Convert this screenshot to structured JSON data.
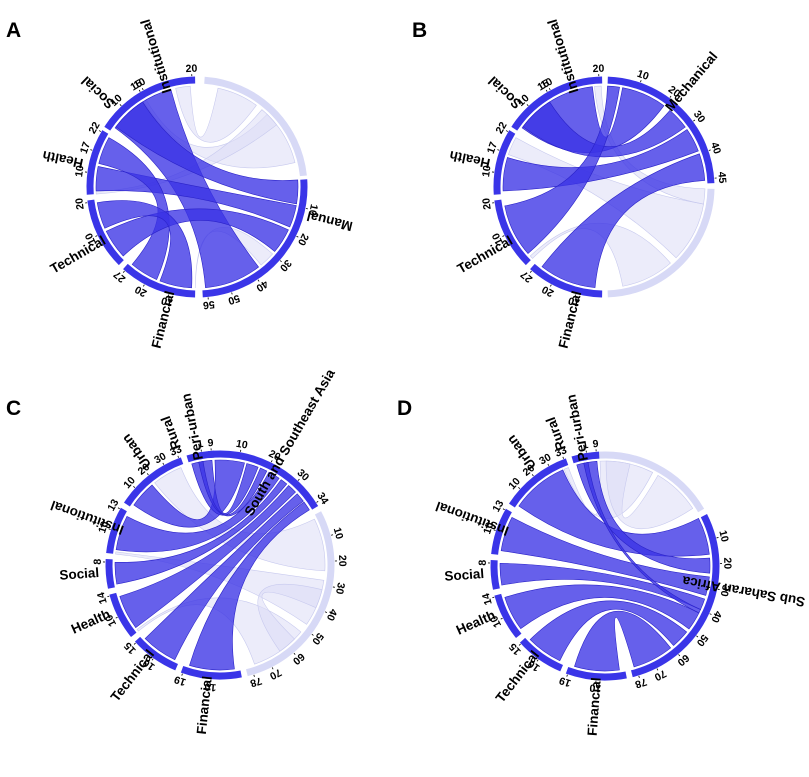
{
  "colors": {
    "highlight_arc": "#3a35e8",
    "highlight_ribbon": "#3b33e6",
    "faded_arc": "#d7d9f6",
    "faded_ribbon": "#dcdcf5",
    "text": "#000000"
  },
  "panels": [
    {
      "id": "A",
      "letter": "A",
      "segments": [
        {
          "name": "Institutional",
          "highlighted": true,
          "tick_labels": [
            "10",
            "20"
          ]
        },
        {
          "name": "",
          "highlighted": false,
          "tick_labels": []
        },
        {
          "name": "Manual",
          "highlighted": true,
          "tick_labels": [
            "10",
            "20",
            "30",
            "40",
            "50",
            "56"
          ]
        },
        {
          "name": "Financial",
          "highlighted": true,
          "tick_labels": [
            "10",
            "20",
            "27"
          ]
        },
        {
          "name": "Technical",
          "highlighted": true,
          "tick_labels": [
            "10",
            "20"
          ]
        },
        {
          "name": "Health",
          "highlighted": true,
          "tick_labels": [
            "10",
            "17",
            "22"
          ]
        },
        {
          "name": "Social",
          "highlighted": true,
          "tick_labels": [
            "10",
            "15"
          ]
        }
      ]
    },
    {
      "id": "B",
      "letter": "B",
      "segments": [
        {
          "name": "Institutional",
          "highlighted": true,
          "tick_labels": [
            "10",
            "20"
          ]
        },
        {
          "name": "Mechanical",
          "highlighted": true,
          "tick_labels": [
            "10",
            "20",
            "30",
            "40",
            "45"
          ]
        },
        {
          "name": "",
          "highlighted": false,
          "tick_labels": []
        },
        {
          "name": "Financial",
          "highlighted": true,
          "tick_labels": [
            "10",
            "20",
            "27"
          ]
        },
        {
          "name": "Technical",
          "highlighted": true,
          "tick_labels": [
            "10",
            "20"
          ]
        },
        {
          "name": "Health",
          "highlighted": true,
          "tick_labels": [
            "10",
            "17",
            "22"
          ]
        },
        {
          "name": "Social",
          "highlighted": true,
          "tick_labels": [
            "10",
            "15"
          ]
        }
      ]
    },
    {
      "id": "C",
      "letter": "C",
      "segments": [
        {
          "name": "Rural",
          "highlighted": true,
          "tick_labels": [
            "1"
          ]
        },
        {
          "name": "South and Southeast Asia",
          "highlighted": true,
          "tick_labels": [
            "10",
            "20",
            "30",
            "34"
          ]
        },
        {
          "name": "",
          "highlighted": false,
          "tick_labels": [
            "10",
            "20",
            "30",
            "40",
            "50",
            "60",
            "70",
            "78"
          ]
        },
        {
          "name": "Financial",
          "highlighted": true,
          "tick_labels": [
            "10",
            "19"
          ]
        },
        {
          "name": "Technical",
          "highlighted": true,
          "tick_labels": [
            "10",
            "15"
          ]
        },
        {
          "name": "Health",
          "highlighted": true,
          "tick_labels": [
            "10",
            "14"
          ]
        },
        {
          "name": "Social",
          "highlighted": true,
          "tick_labels": [
            "8"
          ]
        },
        {
          "name": "Institutional",
          "highlighted": true,
          "tick_labels": [
            "10",
            "13"
          ]
        },
        {
          "name": "Urban",
          "highlighted": true,
          "tick_labels": [
            "10",
            "20",
            "30",
            "33"
          ]
        },
        {
          "name": "Peri-urban",
          "highlighted": true,
          "tick_labels": [
            "9"
          ]
        }
      ]
    },
    {
      "id": "D",
      "letter": "D",
      "segments": [
        {
          "name": "Rural",
          "highlighted": true,
          "tick_labels": [
            "1"
          ]
        },
        {
          "name": "",
          "highlighted": false,
          "tick_labels": []
        },
        {
          "name": "Sub Saharan Africa",
          "highlighted": true,
          "tick_labels": [
            "10",
            "20",
            "30",
            "40",
            "50",
            "60",
            "70",
            "78"
          ]
        },
        {
          "name": "Financial",
          "highlighted": true,
          "tick_labels": [
            "10",
            "19"
          ]
        },
        {
          "name": "Technical",
          "highlighted": true,
          "tick_labels": [
            "10",
            "15"
          ]
        },
        {
          "name": "Health",
          "highlighted": true,
          "tick_labels": [
            "10",
            "14"
          ]
        },
        {
          "name": "Social",
          "highlighted": true,
          "tick_labels": [
            "8"
          ]
        },
        {
          "name": "Institutional",
          "highlighted": true,
          "tick_labels": [
            "10",
            "13"
          ]
        },
        {
          "name": "Urban",
          "highlighted": true,
          "tick_labels": [
            "10",
            "20",
            "30",
            "33"
          ]
        },
        {
          "name": "Peri-urban",
          "highlighted": true,
          "tick_labels": [
            "9"
          ]
        }
      ]
    }
  ]
}
